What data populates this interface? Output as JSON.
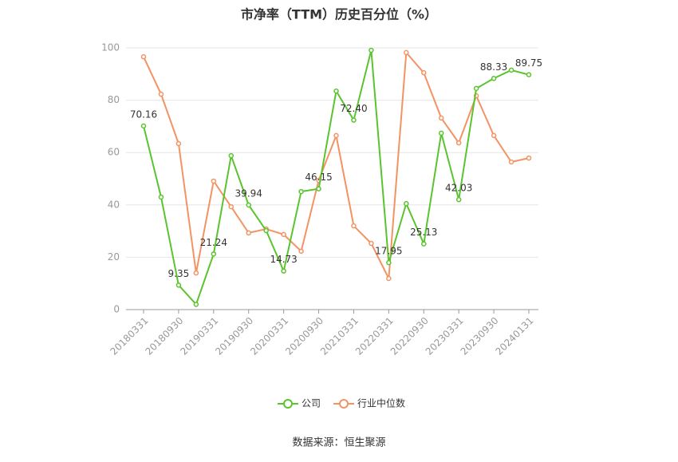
{
  "chart_data": {
    "type": "line",
    "title": "市净率（TTM）历史百分位（%）",
    "source": "数据来源：恒生聚源",
    "categories": [
      "20180331",
      null,
      "20180930",
      null,
      "20190331",
      null,
      "20190930",
      null,
      "20200331",
      null,
      "20200930",
      null,
      "20210331",
      null,
      "20220331",
      null,
      "20220930",
      null,
      "20230331",
      null,
      "20230930",
      null,
      "20240131"
    ],
    "series": [
      {
        "name": "公司",
        "color": "#5ac42f",
        "values": [
          70.16,
          43,
          9.35,
          2,
          21.24,
          58.8,
          39.94,
          30.2,
          14.73,
          45.1,
          46.15,
          83.5,
          72.4,
          99.1,
          17.95,
          40.5,
          25.13,
          67.4,
          42.03,
          84.5,
          88.33,
          91.5,
          89.75
        ],
        "value_labels": [
          "70.16",
          null,
          "9.35",
          null,
          "21.24",
          null,
          "39.94",
          null,
          "14.73",
          null,
          "46.15",
          null,
          "72.40",
          null,
          "17.95",
          null,
          "25.13",
          null,
          "42.03",
          null,
          "88.33",
          null,
          "89.75"
        ]
      },
      {
        "name": "行业中位数",
        "color": "#f39363",
        "values": [
          96.6,
          82.3,
          63.4,
          14,
          49.1,
          39.3,
          29.3,
          30.8,
          28.7,
          22.3,
          49.4,
          66.5,
          32,
          25.3,
          11.9,
          98.2,
          90.5,
          73.2,
          63.7,
          81.7,
          66.5,
          56.4,
          57.9
        ]
      }
    ],
    "ylim": [
      0,
      100
    ],
    "yticks": [
      0,
      20,
      40,
      60,
      80,
      100
    ],
    "grid": true
  }
}
